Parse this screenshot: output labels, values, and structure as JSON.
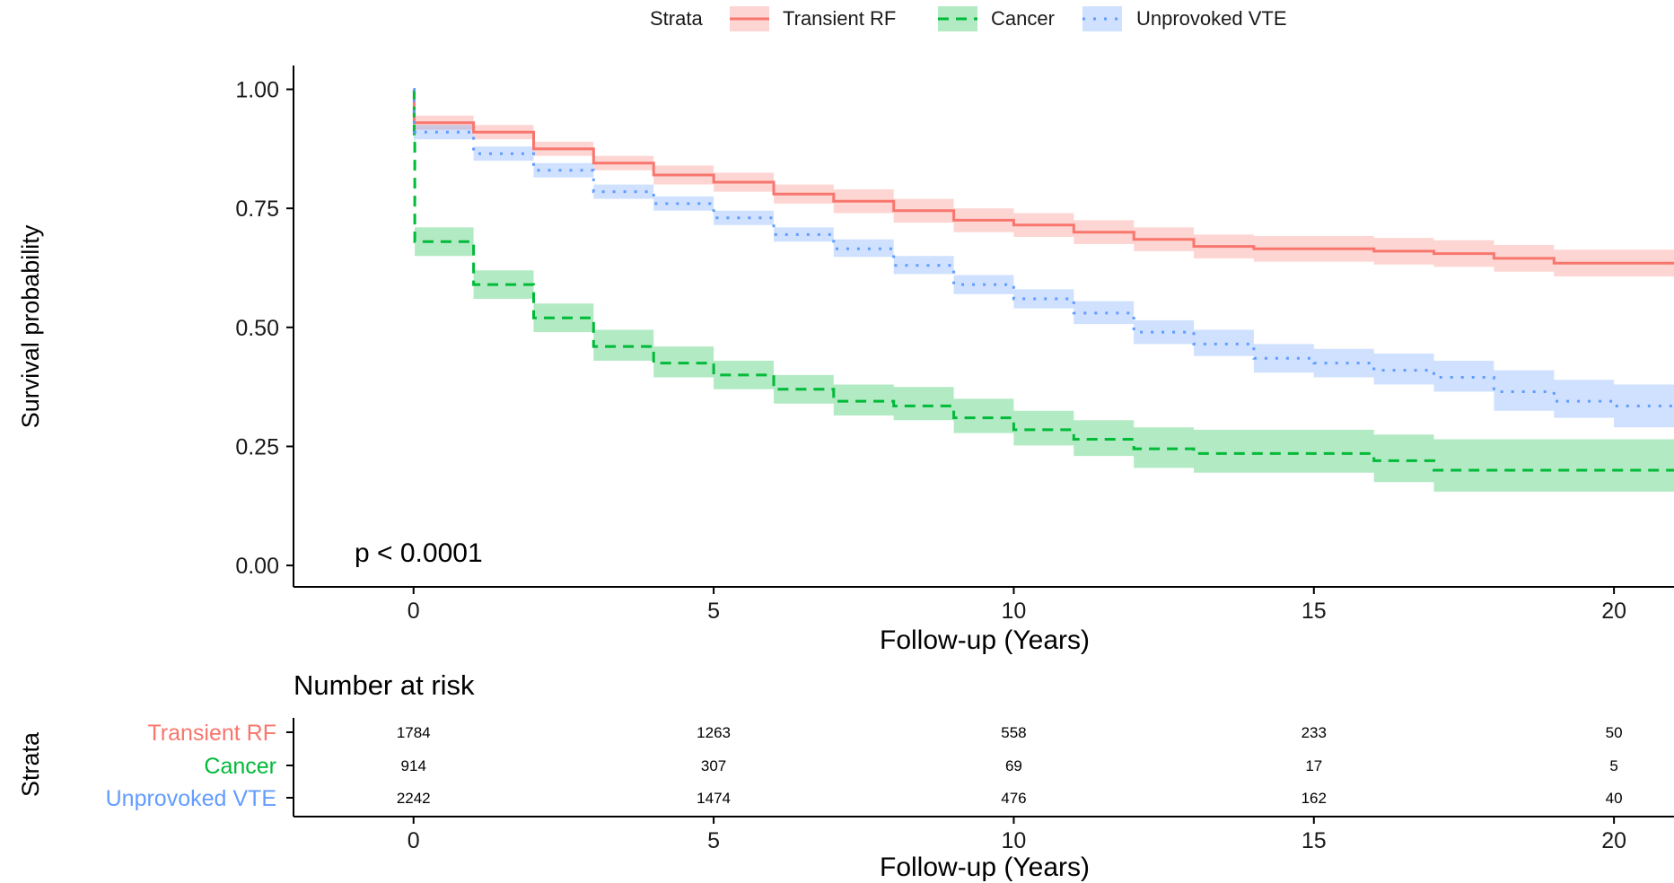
{
  "chart_data": {
    "type": "line",
    "subtype": "kaplan-meier step curves with confidence bands and risk table",
    "legend": {
      "title": "Strata",
      "position": "top",
      "entries": [
        "Transient RF",
        "Cancer",
        "Unprovoked VTE"
      ]
    },
    "ylabel": "Survival probability",
    "xlabel": "Follow-up (Years)",
    "xlim": [
      -2,
      21
    ],
    "ylim": [
      -0.045,
      1.05
    ],
    "x_ticks": [
      0,
      5,
      10,
      15,
      20
    ],
    "y_ticks": [
      0.0,
      0.25,
      0.5,
      0.75,
      1.0
    ],
    "y_tick_labels": [
      "0.00",
      "0.25",
      "0.50",
      "0.75",
      "1.00"
    ],
    "annotation": "p < 0.0001",
    "grid": false,
    "series": [
      {
        "name": "Transient RF",
        "color": "#F8766D",
        "band_color": "#F8766D",
        "line_style": "solid",
        "x": [
          0,
          0.01,
          1,
          2,
          3,
          4,
          5,
          6,
          7,
          8,
          9,
          10,
          11,
          12,
          13,
          14,
          16,
          17,
          18,
          19,
          21
        ],
        "y": [
          1.0,
          0.93,
          0.91,
          0.875,
          0.845,
          0.82,
          0.805,
          0.78,
          0.765,
          0.745,
          0.725,
          0.715,
          0.7,
          0.685,
          0.67,
          0.665,
          0.66,
          0.655,
          0.645,
          0.635,
          0.635
        ],
        "lower": [
          1.0,
          0.915,
          0.895,
          0.86,
          0.83,
          0.8,
          0.785,
          0.76,
          0.74,
          0.72,
          0.7,
          0.69,
          0.675,
          0.66,
          0.645,
          0.638,
          0.632,
          0.627,
          0.617,
          0.607,
          0.607
        ],
        "upper": [
          1.0,
          0.945,
          0.925,
          0.89,
          0.86,
          0.84,
          0.825,
          0.8,
          0.79,
          0.77,
          0.75,
          0.74,
          0.725,
          0.71,
          0.695,
          0.692,
          0.688,
          0.683,
          0.673,
          0.663,
          0.663
        ]
      },
      {
        "name": "Cancer",
        "color": "#00BA38",
        "band_color": "#00BA38",
        "line_style": "dashed",
        "x": [
          0,
          0.01,
          0.02,
          1,
          2,
          3,
          4,
          5,
          6,
          7,
          8,
          9,
          10,
          11,
          12,
          13,
          16,
          17,
          21
        ],
        "y": [
          1.0,
          0.9,
          0.68,
          0.59,
          0.52,
          0.46,
          0.425,
          0.4,
          0.37,
          0.345,
          0.335,
          0.31,
          0.285,
          0.265,
          0.245,
          0.235,
          0.22,
          0.2,
          0.2
        ],
        "lower": [
          1.0,
          0.88,
          0.65,
          0.56,
          0.49,
          0.43,
          0.395,
          0.37,
          0.34,
          0.315,
          0.305,
          0.278,
          0.252,
          0.23,
          0.205,
          0.195,
          0.175,
          0.155,
          0.155
        ],
        "upper": [
          1.0,
          0.92,
          0.71,
          0.62,
          0.55,
          0.495,
          0.46,
          0.43,
          0.4,
          0.38,
          0.375,
          0.35,
          0.325,
          0.305,
          0.29,
          0.285,
          0.275,
          0.265,
          0.265
        ]
      },
      {
        "name": "Unprovoked VTE",
        "color": "#619CFF",
        "band_color": "#619CFF",
        "line_style": "dotted",
        "x": [
          0,
          0.01,
          1,
          2,
          3,
          4,
          5,
          6,
          7,
          8,
          9,
          10,
          11,
          12,
          13,
          14,
          15,
          16,
          17,
          18,
          19,
          20,
          21
        ],
        "y": [
          1.0,
          0.91,
          0.865,
          0.83,
          0.785,
          0.76,
          0.73,
          0.695,
          0.665,
          0.63,
          0.59,
          0.56,
          0.53,
          0.49,
          0.465,
          0.435,
          0.425,
          0.41,
          0.395,
          0.365,
          0.345,
          0.335,
          0.335
        ],
        "lower": [
          1.0,
          0.895,
          0.85,
          0.815,
          0.77,
          0.745,
          0.715,
          0.68,
          0.648,
          0.612,
          0.57,
          0.54,
          0.507,
          0.465,
          0.44,
          0.405,
          0.395,
          0.38,
          0.365,
          0.325,
          0.31,
          0.29,
          0.29
        ],
        "upper": [
          1.0,
          0.925,
          0.88,
          0.845,
          0.8,
          0.775,
          0.745,
          0.71,
          0.685,
          0.65,
          0.61,
          0.58,
          0.555,
          0.515,
          0.495,
          0.465,
          0.455,
          0.445,
          0.43,
          0.41,
          0.39,
          0.38,
          0.38
        ]
      }
    ],
    "risk_table": {
      "title": "Number at risk",
      "y_axis_label": "Strata",
      "xlabel": "Follow-up (Years)",
      "x_ticks": [
        0,
        5,
        10,
        15,
        20
      ],
      "rows": [
        {
          "name": "Transient RF",
          "color": "#F8766D",
          "values": [
            1784,
            1263,
            558,
            233,
            50
          ]
        },
        {
          "name": "Cancer",
          "color": "#00BA38",
          "values": [
            914,
            307,
            69,
            17,
            5
          ]
        },
        {
          "name": "Unprovoked VTE",
          "color": "#619CFF",
          "values": [
            2242,
            1474,
            476,
            162,
            40
          ]
        }
      ]
    }
  }
}
